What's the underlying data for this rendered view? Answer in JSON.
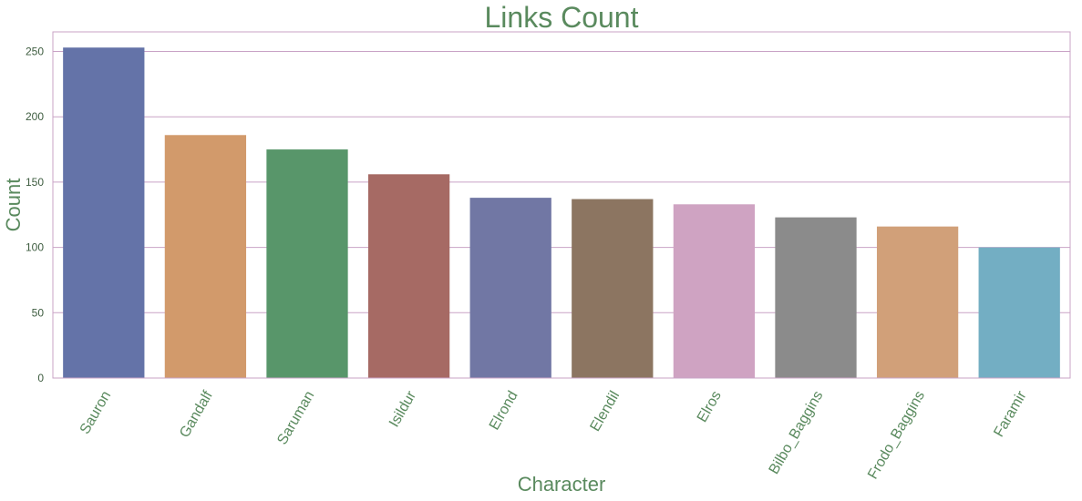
{
  "chart_data": {
    "type": "bar",
    "title": "Links Count",
    "xlabel": "Character",
    "ylabel": "Count",
    "categories": [
      "Sauron",
      "Gandalf",
      "Saruman",
      "Isildur",
      "Elrond",
      "Elendil",
      "Elros",
      "Bilbo_Baggins",
      "Frodo_Baggins",
      "Faramir"
    ],
    "values": [
      253,
      186,
      175,
      156,
      138,
      137,
      133,
      123,
      116,
      100
    ],
    "ylim": [
      0,
      265
    ],
    "yticks": [
      0,
      50,
      100,
      150,
      200,
      250
    ],
    "grid": true,
    "bar_colors": [
      "#6473a8",
      "#d29a6b",
      "#58966a",
      "#a66a64",
      "#7177a4",
      "#8c7561",
      "#cfa3c2",
      "#8b8b8b",
      "#d1a079",
      "#73aec3"
    ],
    "text_color": "#5a8a5e",
    "tick_color": "#3d5c3f",
    "frame_color": "#c9a3c6"
  }
}
